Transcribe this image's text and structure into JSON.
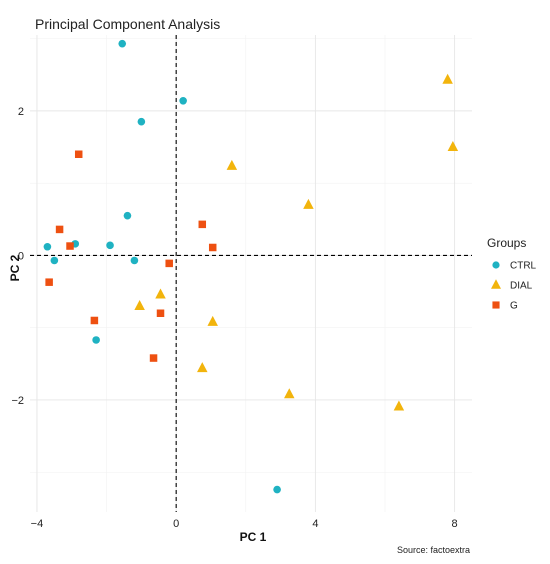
{
  "chart_data": {
    "type": "scatter",
    "title": "Principal Component Analysis",
    "xlabel": "PC 1",
    "ylabel": "PC 2",
    "xlim": [
      -4.2,
      8.5
    ],
    "ylim": [
      -3.55,
      3.05
    ],
    "x_ticks": [
      {
        "value": -4,
        "label": "−4"
      },
      {
        "value": 0,
        "label": "0"
      },
      {
        "value": 4,
        "label": "4"
      },
      {
        "value": 8,
        "label": "8"
      }
    ],
    "y_ticks": [
      {
        "value": 2,
        "label": "2"
      },
      {
        "value": 0,
        "label": "0"
      },
      {
        "value": -2,
        "label": "−2"
      }
    ],
    "reference_lines": {
      "x": 0,
      "y": 0,
      "style": "dashed"
    },
    "grid": true,
    "legend": {
      "title": "Groups",
      "position": "right"
    },
    "caption": "Source: factoextra",
    "series": [
      {
        "name": "CTRL",
        "marker": "circle",
        "color": "#1fb2c2",
        "x": [
          -1.55,
          0.2,
          -1.0,
          -1.4,
          -3.7,
          -3.5,
          -2.9,
          -1.9,
          -1.2,
          -2.3,
          2.9
        ],
        "y": [
          2.93,
          2.14,
          1.85,
          0.55,
          0.12,
          -0.07,
          0.16,
          0.14,
          -0.07,
          -1.17,
          -3.24
        ]
      },
      {
        "name": "DIAL",
        "marker": "triangle",
        "color": "#f2b40c",
        "x": [
          7.8,
          7.95,
          1.6,
          3.8,
          -0.45,
          -1.05,
          1.05,
          0.75,
          3.25,
          6.4
        ],
        "y": [
          2.43,
          1.5,
          1.24,
          0.7,
          -0.54,
          -0.7,
          -0.92,
          -1.56,
          -1.92,
          -2.09
        ]
      },
      {
        "name": "G",
        "marker": "square",
        "color": "#ee5011",
        "x": [
          -2.8,
          -3.35,
          -3.05,
          -3.65,
          -0.2,
          0.75,
          1.05,
          -2.35,
          -0.45,
          -0.65
        ],
        "y": [
          1.4,
          0.36,
          0.13,
          -0.37,
          -0.11,
          0.43,
          0.11,
          -0.9,
          -0.8,
          -1.42
        ]
      }
    ]
  }
}
